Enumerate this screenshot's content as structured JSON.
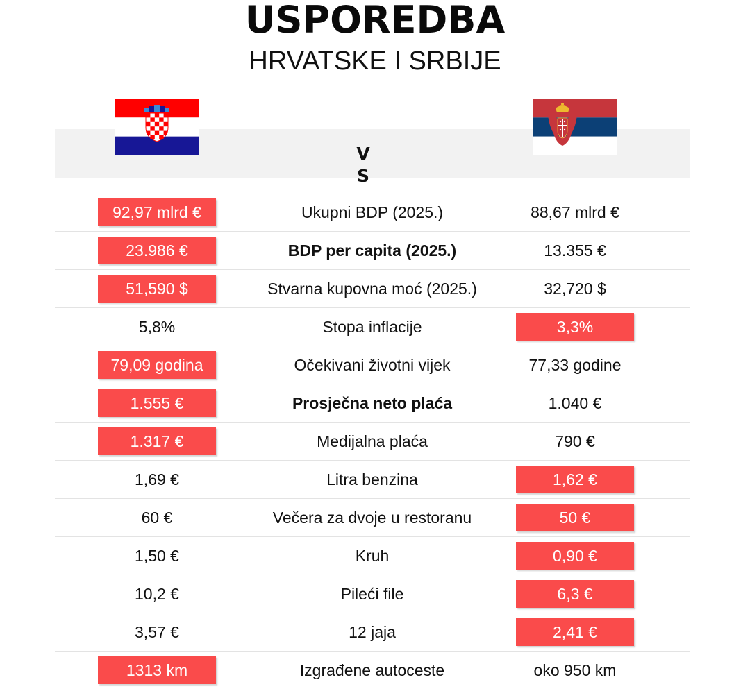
{
  "header": {
    "title": "USPOREDBA",
    "subtitle": "HRVATSKE I SRBIJE",
    "vs": "V\nS"
  },
  "flags": {
    "left": "croatia-flag-icon",
    "right": "serbia-flag-icon"
  },
  "colors": {
    "highlight": "#fa4b4b",
    "band": "#f2f2f2",
    "divider": "#e3e3e3"
  },
  "rows": [
    {
      "left": "92,97 mlrd €",
      "label": "Ukupni BDP (2025.)",
      "right": "88,67 mlrd €",
      "winner": "left",
      "bold": false
    },
    {
      "left": "23.986 €",
      "label": "BDP per capita (2025.)",
      "right": "13.355 €",
      "winner": "left",
      "bold": true
    },
    {
      "left": "51,590 $",
      "label": "Stvarna kupovna moć (2025.)",
      "right": "32,720 $",
      "winner": "left",
      "bold": false
    },
    {
      "left": "5,8%",
      "label": "Stopa inflacije",
      "right": "3,3%",
      "winner": "right",
      "bold": false
    },
    {
      "left": "79,09 godina",
      "label": "Očekivani životni vijek",
      "right": "77,33 godine",
      "winner": "left",
      "bold": false
    },
    {
      "left": "1.555 €",
      "label": "Prosječna neto plaća",
      "right": "1.040 €",
      "winner": "left",
      "bold": true
    },
    {
      "left": "1.317 €",
      "label": "Medijalna plaća",
      "right": "790 €",
      "winner": "left",
      "bold": false
    },
    {
      "left": "1,69 €",
      "label": "Litra benzina",
      "right": "1,62 €",
      "winner": "right",
      "bold": false
    },
    {
      "left": "60 €",
      "label": "Večera za dvoje u restoranu",
      "right": "50 €",
      "winner": "right",
      "bold": false
    },
    {
      "left": "1,50 €",
      "label": "Kruh",
      "right": "0,90 €",
      "winner": "right",
      "bold": false
    },
    {
      "left": "10,2 €",
      "label": "Pileći file",
      "right": "6,3 €",
      "winner": "right",
      "bold": false
    },
    {
      "left": "3,57 €",
      "label": "12 jaja",
      "right": "2,41 €",
      "winner": "right",
      "bold": false
    },
    {
      "left": "1313 km",
      "label": "Izgrađene autoceste",
      "right": "oko 950 km",
      "winner": "left",
      "bold": false
    }
  ]
}
